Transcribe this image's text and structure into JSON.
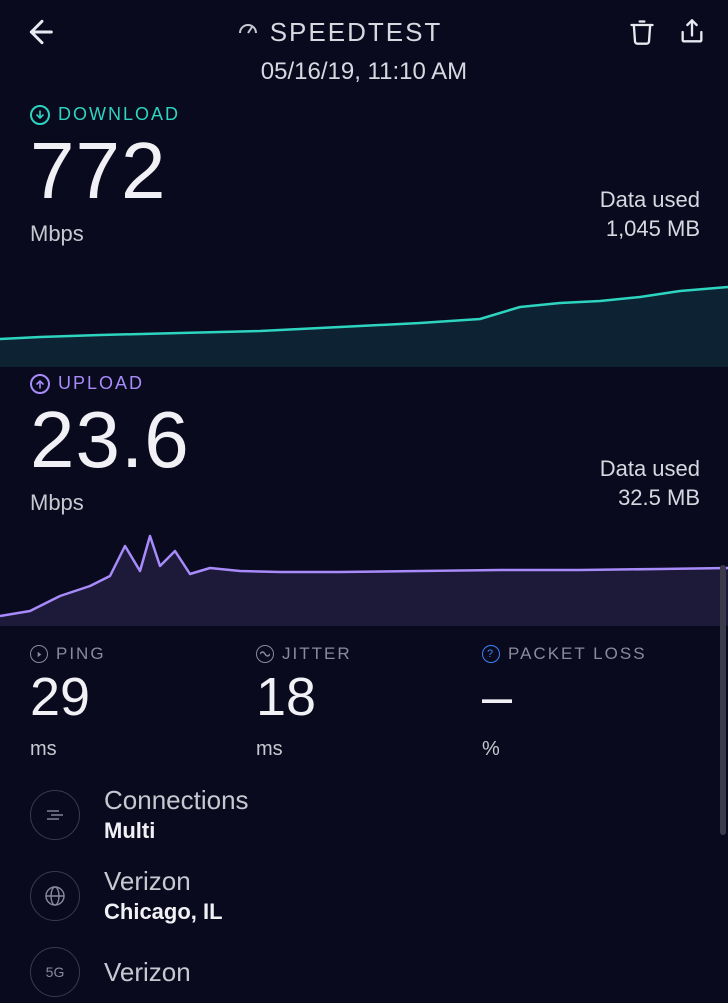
{
  "header": {
    "title": "SPEEDTEST",
    "timestamp": "05/16/19, 11:10 AM"
  },
  "download": {
    "label": "DOWNLOAD",
    "value": "772",
    "unit": "Mbps",
    "data_used_label": "Data used",
    "data_used_value": "1,045 MB",
    "color": "#2dd4bf",
    "chart": {
      "points": [
        0,
        92,
        40,
        90,
        100,
        88,
        180,
        86,
        260,
        84,
        340,
        80,
        420,
        76,
        480,
        72,
        520,
        60,
        540,
        58,
        560,
        56,
        600,
        54,
        640,
        50,
        680,
        44,
        728,
        40
      ],
      "stroke_width": 2.5,
      "height": 120
    }
  },
  "upload": {
    "label": "UPLOAD",
    "value": "23.6",
    "unit": "Mbps",
    "data_used_label": "Data used",
    "data_used_value": "32.5 MB",
    "color": "#a78bfa",
    "chart": {
      "points": [
        0,
        100,
        30,
        95,
        60,
        80,
        90,
        70,
        110,
        60,
        125,
        30,
        140,
        55,
        150,
        20,
        160,
        50,
        175,
        35,
        190,
        58,
        210,
        52,
        240,
        55,
        280,
        56,
        340,
        56,
        420,
        55,
        500,
        54,
        580,
        54,
        660,
        53,
        728,
        52
      ],
      "stroke_width": 2.5,
      "height": 110
    }
  },
  "stats": {
    "ping": {
      "label": "PING",
      "value": "29",
      "unit": "ms",
      "icon_color": "#8a8a9a"
    },
    "jitter": {
      "label": "JITTER",
      "value": "18",
      "unit": "ms",
      "icon_color": "#8a8a9a"
    },
    "loss": {
      "label": "PACKET LOSS",
      "value": "–",
      "unit": "%",
      "icon_color": "#3b82f6"
    }
  },
  "info": {
    "connections": {
      "title": "Connections",
      "value": "Multi"
    },
    "server": {
      "title": "Verizon",
      "value": "Chicago, IL"
    },
    "network": {
      "title": "Verizon",
      "badge": "5G"
    }
  },
  "colors": {
    "background": "#0a0a1f",
    "text": "#e8e8f0",
    "muted": "#8a8a9a"
  }
}
